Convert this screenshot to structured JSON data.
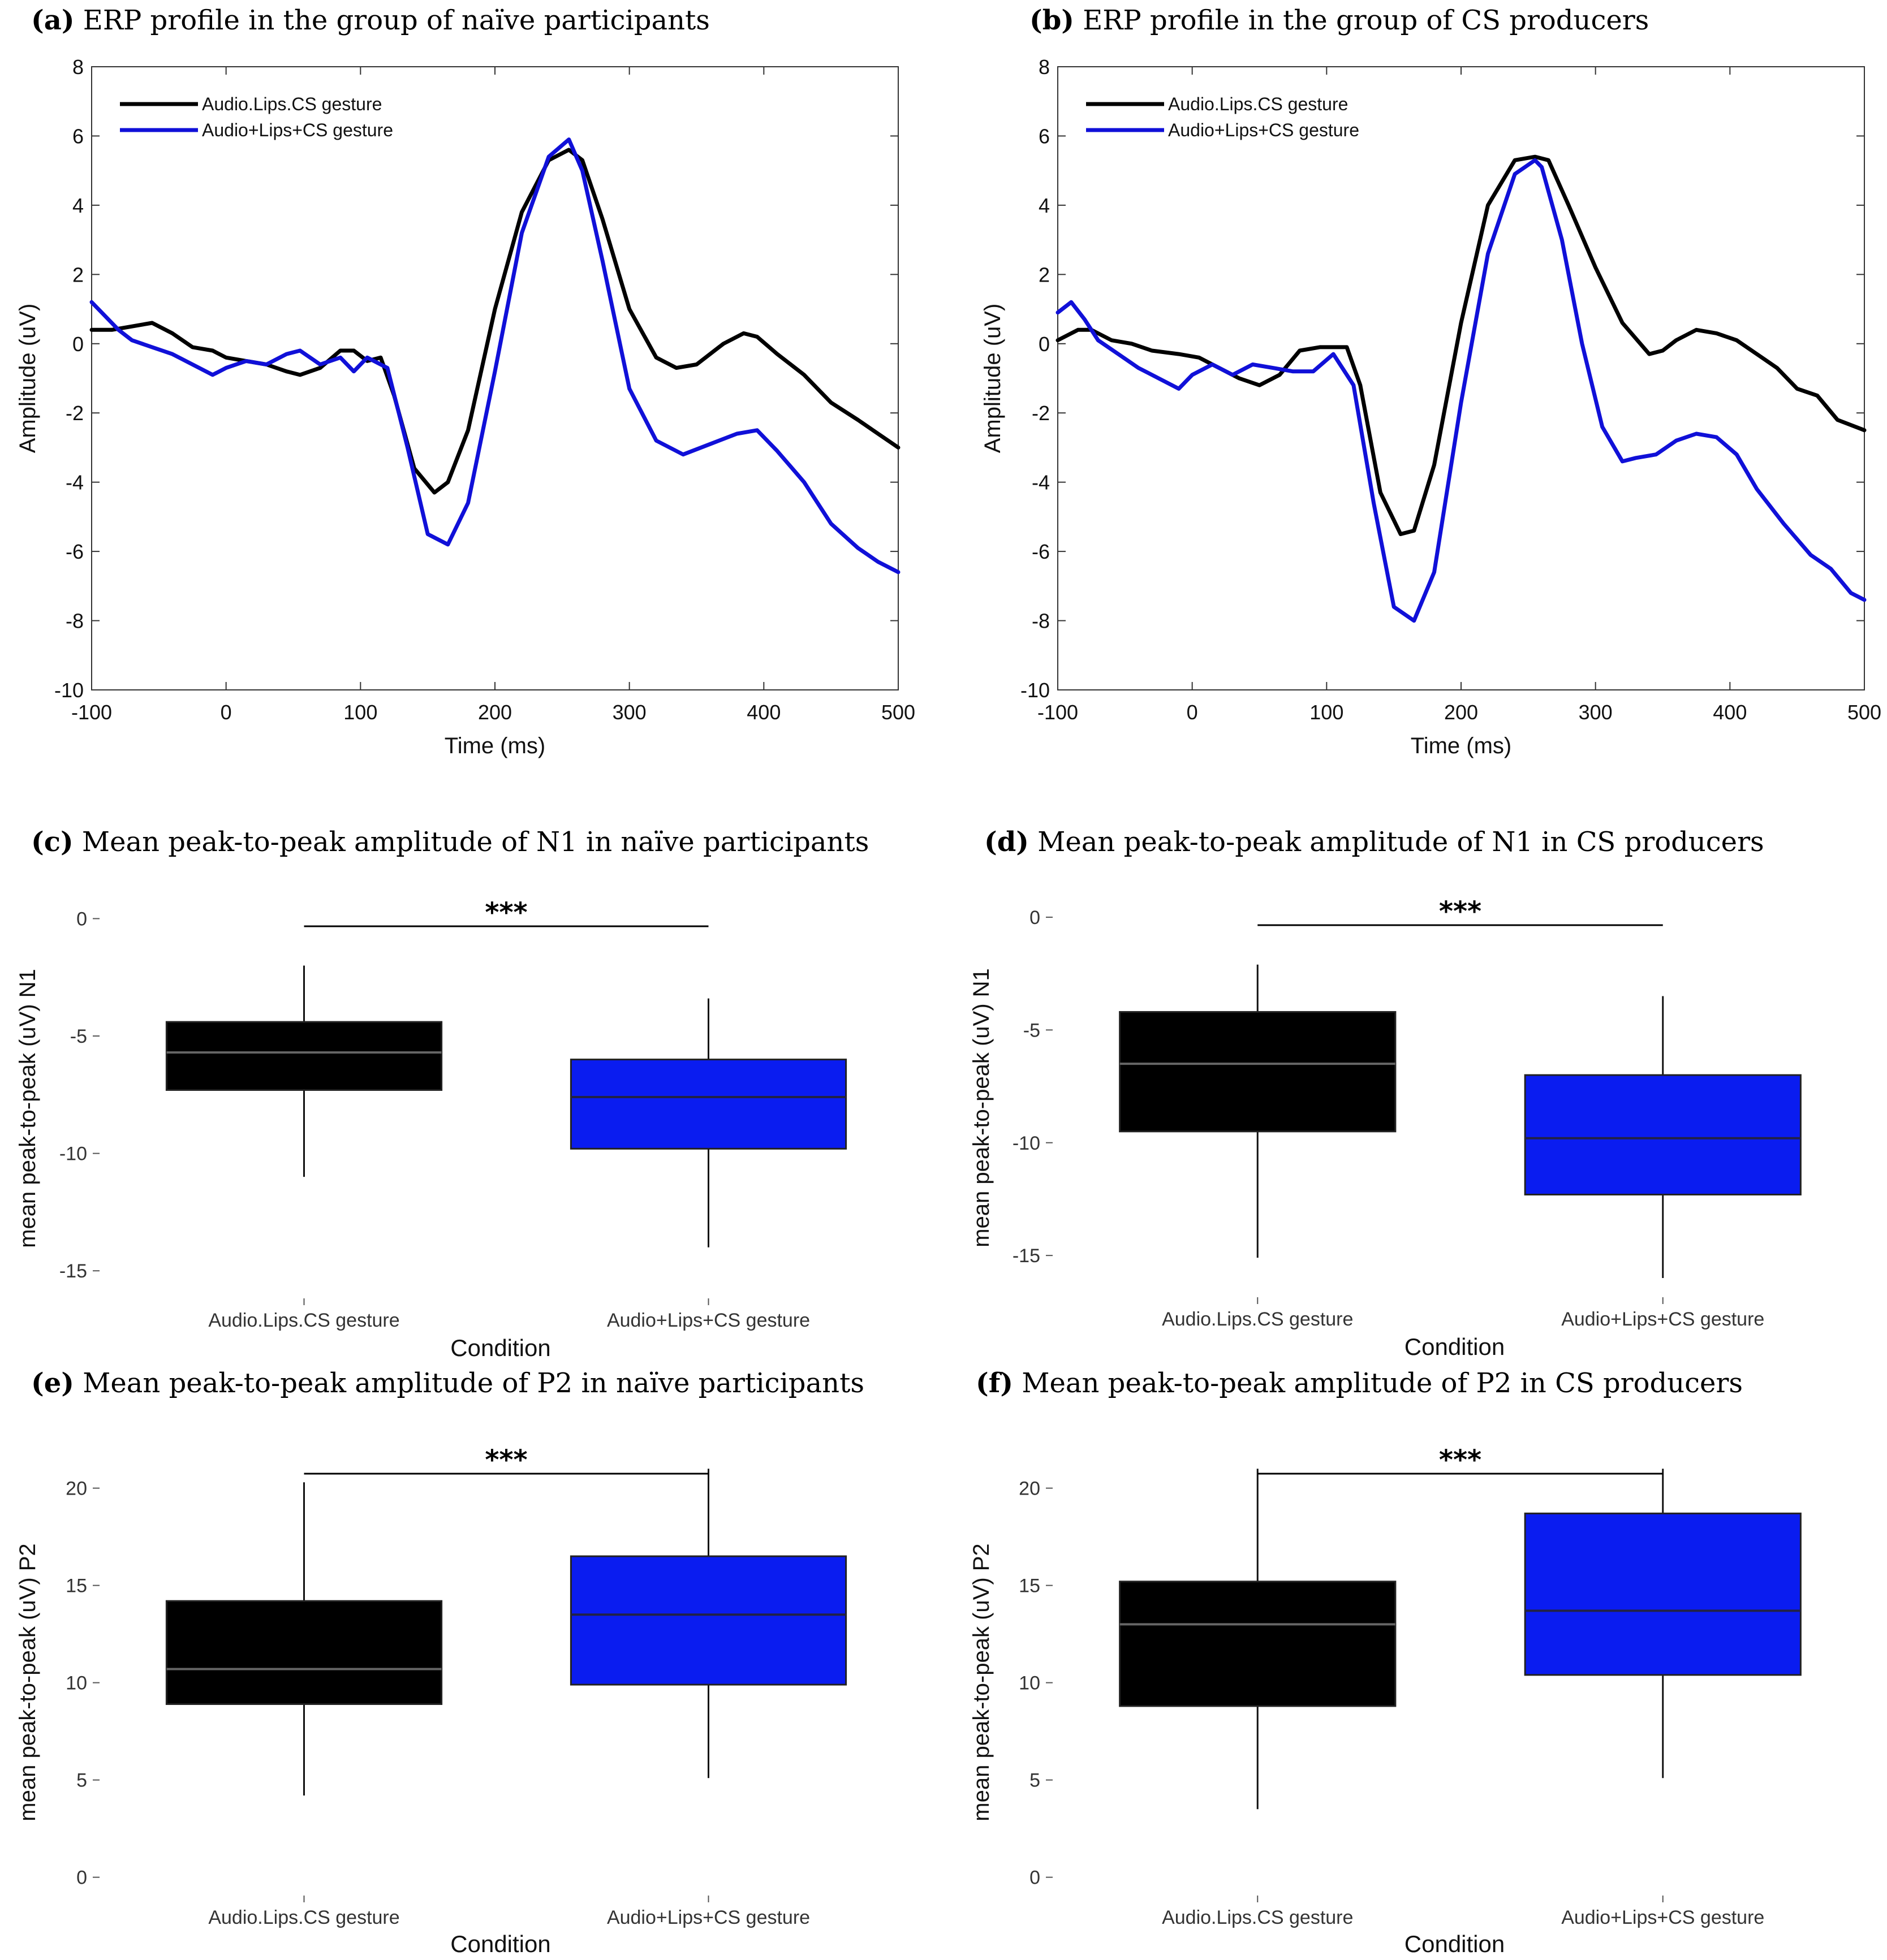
{
  "colors": {
    "black": "#000000",
    "blue": "#1010d8",
    "box_black": "#000000",
    "box_blue": "#0a1cf0",
    "median_black": "#666666",
    "median_blue": "#222244"
  },
  "chart_data": [
    {
      "id": "a",
      "type": "line",
      "label": "(a)",
      "title": " ERP profile in the group of naïve participants",
      "xlabel": "Time (ms)",
      "ylabel": "Amplitude (uV)",
      "xlim": [
        -100,
        500
      ],
      "ylim": [
        -10,
        8
      ],
      "xticks": [
        "-100",
        "0",
        "100",
        "200",
        "300",
        "400",
        "500"
      ],
      "yticks": [
        "8",
        "6",
        "4",
        "2",
        "0",
        "-2",
        "-4",
        "-6",
        "-8",
        "-10"
      ],
      "series": [
        {
          "name": "Audio.Lips.CS gesture",
          "color": "black",
          "x": [
            -100,
            -85,
            -70,
            -55,
            -40,
            -25,
            -10,
            0,
            15,
            30,
            45,
            55,
            70,
            85,
            95,
            105,
            115,
            125,
            140,
            155,
            165,
            180,
            200,
            220,
            240,
            255,
            265,
            280,
            300,
            320,
            335,
            350,
            370,
            385,
            395,
            410,
            430,
            450,
            470,
            485,
            500
          ],
          "y": [
            0.4,
            0.4,
            0.5,
            0.6,
            0.3,
            -0.1,
            -0.2,
            -0.4,
            -0.5,
            -0.6,
            -0.8,
            -0.9,
            -0.7,
            -0.2,
            -0.2,
            -0.5,
            -0.4,
            -1.5,
            -3.6,
            -4.3,
            -4.0,
            -2.5,
            1.0,
            3.8,
            5.3,
            5.6,
            5.3,
            3.6,
            1.0,
            -0.4,
            -0.7,
            -0.6,
            0.0,
            0.3,
            0.2,
            -0.3,
            -0.9,
            -1.7,
            -2.2,
            -2.6,
            -3.0
          ]
        },
        {
          "name": "Audio+Lips+CS gesture",
          "color": "blue",
          "x": [
            -100,
            -90,
            -80,
            -70,
            -55,
            -40,
            -25,
            -10,
            0,
            15,
            30,
            45,
            55,
            70,
            85,
            95,
            105,
            120,
            135,
            150,
            165,
            180,
            200,
            220,
            240,
            255,
            265,
            280,
            300,
            320,
            340,
            360,
            380,
            395,
            410,
            430,
            450,
            470,
            485,
            500
          ],
          "y": [
            1.2,
            0.8,
            0.4,
            0.1,
            -0.1,
            -0.3,
            -0.6,
            -0.9,
            -0.7,
            -0.5,
            -0.6,
            -0.3,
            -0.2,
            -0.6,
            -0.4,
            -0.8,
            -0.4,
            -0.7,
            -3.0,
            -5.5,
            -5.8,
            -4.6,
            -0.8,
            3.2,
            5.4,
            5.9,
            5.0,
            2.4,
            -1.3,
            -2.8,
            -3.2,
            -2.9,
            -2.6,
            -2.5,
            -3.1,
            -4.0,
            -5.2,
            -5.9,
            -6.3,
            -6.6
          ]
        }
      ],
      "legend": "top-left"
    },
    {
      "id": "b",
      "type": "line",
      "label": "(b)",
      "title": " ERP profile in the group of CS  producers",
      "xlabel": "Time (ms)",
      "ylabel": "Amplitude (uV)",
      "xlim": [
        -100,
        500
      ],
      "ylim": [
        -10,
        8
      ],
      "xticks": [
        "-100",
        "0",
        "100",
        "200",
        "300",
        "400",
        "500"
      ],
      "yticks": [
        "8",
        "6",
        "4",
        "2",
        "0",
        "-2",
        "-4",
        "-6",
        "-8",
        "-10"
      ],
      "series": [
        {
          "name": "Audio.Lips.CS gesture",
          "color": "black",
          "x": [
            -100,
            -85,
            -75,
            -60,
            -45,
            -30,
            -10,
            5,
            20,
            35,
            50,
            65,
            80,
            95,
            105,
            115,
            125,
            140,
            155,
            165,
            180,
            200,
            220,
            240,
            255,
            265,
            280,
            300,
            320,
            340,
            350,
            360,
            375,
            390,
            405,
            420,
            435,
            450,
            465,
            480,
            500
          ],
          "y": [
            0.1,
            0.4,
            0.4,
            0.1,
            0.0,
            -0.2,
            -0.3,
            -0.4,
            -0.7,
            -1.0,
            -1.2,
            -0.9,
            -0.2,
            -0.1,
            -0.1,
            -0.1,
            -1.2,
            -4.3,
            -5.5,
            -5.4,
            -3.5,
            0.6,
            4.0,
            5.3,
            5.4,
            5.3,
            4.0,
            2.2,
            0.6,
            -0.3,
            -0.2,
            0.1,
            0.4,
            0.3,
            0.1,
            -0.3,
            -0.7,
            -1.3,
            -1.5,
            -2.2,
            -2.5
          ]
        },
        {
          "name": "Audio+Lips+CS gesture",
          "color": "blue",
          "x": [
            -100,
            -90,
            -80,
            -70,
            -55,
            -40,
            -25,
            -10,
            0,
            15,
            30,
            45,
            60,
            75,
            90,
            105,
            120,
            135,
            150,
            165,
            180,
            200,
            220,
            240,
            255,
            260,
            275,
            290,
            305,
            320,
            330,
            345,
            360,
            375,
            390,
            405,
            420,
            440,
            460,
            475,
            490,
            500
          ],
          "y": [
            0.9,
            1.2,
            0.7,
            0.1,
            -0.3,
            -0.7,
            -1.0,
            -1.3,
            -0.9,
            -0.6,
            -0.9,
            -0.6,
            -0.7,
            -0.8,
            -0.8,
            -0.3,
            -1.2,
            -4.6,
            -7.6,
            -8.0,
            -6.6,
            -1.7,
            2.6,
            4.9,
            5.3,
            5.1,
            3.0,
            0.0,
            -2.4,
            -3.4,
            -3.3,
            -3.2,
            -2.8,
            -2.6,
            -2.7,
            -3.2,
            -4.2,
            -5.2,
            -6.1,
            -6.5,
            -7.2,
            -7.4
          ]
        }
      ],
      "legend": "top-left"
    },
    {
      "id": "c",
      "type": "box",
      "label": "(c)",
      "title": " Mean peak-to-peak amplitude of N1 in naïve participants",
      "xlabel": "Condition",
      "ylabel": "mean peak-to-peak (uV) N1",
      "ylim": [
        -15.5,
        0.3
      ],
      "yticks": [
        "0",
        "-5",
        "-10",
        "-15"
      ],
      "significance": "***",
      "boxes": [
        {
          "category": "Audio.Lips.CS gesture",
          "color": "box_black",
          "median_color": "median_black",
          "whisker_low": -11.0,
          "q1": -7.3,
          "median": -5.7,
          "q3": -4.4,
          "whisker_high": -2.0
        },
        {
          "category": "Audio+Lips+CS gesture",
          "color": "box_blue",
          "median_color": "median_blue",
          "whisker_low": -14.0,
          "q1": -9.8,
          "median": -7.6,
          "q3": -6.0,
          "whisker_high": -3.4
        }
      ]
    },
    {
      "id": "d",
      "type": "box",
      "label": "(d)",
      "title": " Mean peak-to-peak amplitude of N1 in CS producers",
      "xlabel": "Condition",
      "ylabel": "mean peak-to-peak (uV) N1",
      "ylim": [
        -16.2,
        0.3
      ],
      "yticks": [
        "0",
        "-5",
        "-10",
        "-15"
      ],
      "significance": "***",
      "boxes": [
        {
          "category": "Audio.Lips.CS gesture",
          "color": "box_black",
          "median_color": "median_black",
          "whisker_low": -15.1,
          "q1": -9.5,
          "median": -6.5,
          "q3": -4.2,
          "whisker_high": -2.1
        },
        {
          "category": "Audio+Lips+CS gesture",
          "color": "box_blue",
          "median_color": "median_blue",
          "whisker_low": -16.0,
          "q1": -12.3,
          "median": -9.8,
          "q3": -7.0,
          "whisker_high": -3.5
        }
      ]
    },
    {
      "id": "e",
      "type": "box",
      "label": "(e)",
      "title": " Mean peak-to-peak amplitude of P2 in naïve participants",
      "xlabel": "Condition",
      "ylabel": "mean peak-to-peak (uV) P2",
      "ylim": [
        -0.3,
        21.5
      ],
      "yticks": [
        "20",
        "15",
        "10",
        "5",
        "0"
      ],
      "significance": "***",
      "boxes": [
        {
          "category": "Audio.Lips.CS gesture",
          "color": "box_black",
          "median_color": "median_black",
          "whisker_low": 4.2,
          "q1": 8.9,
          "median": 10.7,
          "q3": 14.2,
          "whisker_high": 20.3
        },
        {
          "category": "Audio+Lips+CS gesture",
          "color": "box_blue",
          "median_color": "median_blue",
          "whisker_low": 5.1,
          "q1": 9.9,
          "median": 13.5,
          "q3": 16.5,
          "whisker_high": 21.0
        }
      ]
    },
    {
      "id": "f",
      "type": "box",
      "label": "(f)",
      "title": " Mean peak-to-peak amplitude of P2 in CS producers",
      "xlabel": "Condition",
      "ylabel": "mean peak-to-peak (uV) P2",
      "ylim": [
        -0.3,
        21.5
      ],
      "yticks": [
        "20",
        "15",
        "10",
        "5",
        "0"
      ],
      "significance": "***",
      "boxes": [
        {
          "category": "Audio.Lips.CS gesture",
          "color": "box_black",
          "median_color": "median_black",
          "whisker_low": 3.5,
          "q1": 8.8,
          "median": 13.0,
          "q3": 15.2,
          "whisker_high": 21.0
        },
        {
          "category": "Audio+Lips+CS gesture",
          "color": "box_blue",
          "median_color": "median_blue",
          "whisker_low": 5.1,
          "q1": 10.4,
          "median": 13.7,
          "q3": 18.7,
          "whisker_high": 21.0
        }
      ]
    }
  ]
}
